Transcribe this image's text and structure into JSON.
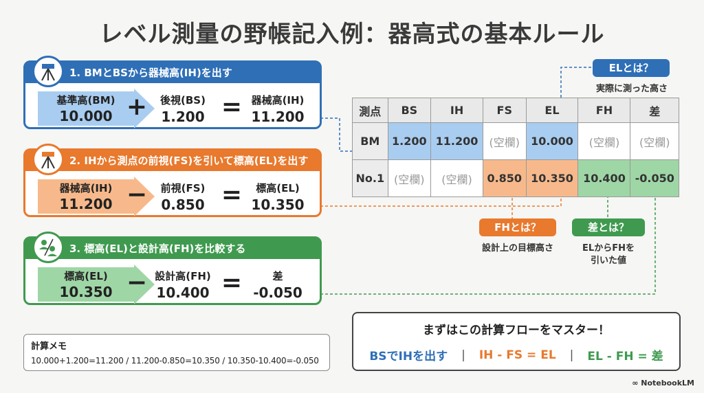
{
  "title": "レベル測量の野帳記入例：器高式の基本ルール",
  "steps": [
    {
      "heading": "1. BMとBSから器械高(IH)を出す",
      "icon": "level-instrument-icon",
      "a_label": "基準高(BM)",
      "a_value": "10.000",
      "op1": "+",
      "b_label": "後視(BS)",
      "b_value": "1.200",
      "op2": "=",
      "c_label": "器械高(IH)",
      "c_value": "11.200",
      "color": "#2f6fb6"
    },
    {
      "heading": "2. IHから測点の前視(FS)を引いて標高(EL)を出す",
      "icon": "level-instrument-icon",
      "a_label": "器械高(IH)",
      "a_value": "11.200",
      "op1": "−",
      "b_label": "前視(FS)",
      "b_value": "0.850",
      "op2": "=",
      "c_label": "標高(EL)",
      "c_value": "10.350",
      "color": "#e8792d"
    },
    {
      "heading": "3. 標高(EL)と設計高(FH)を比較する",
      "icon": "compare-people-icon",
      "a_label": "標高(EL)",
      "a_value": "10.350",
      "op1": "−",
      "b_label": "設計高(FH)",
      "b_value": "10.400",
      "op2": "=",
      "c_label": "差",
      "c_value": "-0.050",
      "color": "#3f9a4f"
    }
  ],
  "memo": {
    "title": "計算メモ",
    "body": "10.000+1.200=11.200 / 11.200-0.850=10.350 / 10.350-10.400=-0.050"
  },
  "table": {
    "headers": [
      "測点",
      "BS",
      "IH",
      "FS",
      "EL",
      "FH",
      "差"
    ],
    "rows": [
      [
        "BM",
        "1.200",
        "11.200",
        "(空欄)",
        "10.000",
        "(空欄)",
        "(空欄)"
      ],
      [
        "No.1",
        "(空欄)",
        "(空欄)",
        "0.850",
        "10.350",
        "10.400",
        "-0.050"
      ]
    ]
  },
  "callouts": {
    "el_badge": "ELとは？",
    "el_note": "実際に測った高さ",
    "fh_badge": "FHとは？",
    "fh_note": "設計上の目標高さ",
    "diff_badge": "差とは？",
    "diff_note_1": "ELからFHを",
    "diff_note_2": "引いた値"
  },
  "summary": {
    "title": "まずはこの計算フローをマスター！",
    "f1": "BSでIHを出す",
    "f2": "IH - FS = EL",
    "f3": "EL - FH = 差",
    "sep": "|"
  },
  "brand": "NotebookLM",
  "colors": {
    "blue": "#2f6fb6",
    "orange": "#e8792d",
    "green": "#3f9a4f"
  }
}
